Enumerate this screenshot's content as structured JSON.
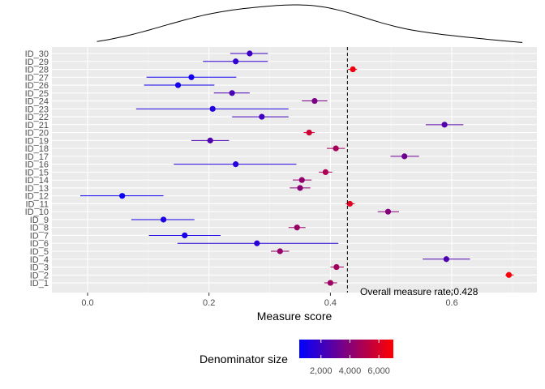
{
  "chart_data": {
    "type": "forest",
    "xlabel": "Measure score",
    "x_ticks": [
      0.0,
      0.2,
      0.4,
      0.6
    ],
    "x_tick_labels": [
      "0.0",
      "0.2",
      "0.4",
      "0.6"
    ],
    "xlim": [
      -0.07,
      0.74
    ],
    "reference_line": {
      "value": 0.428,
      "style": "dashed",
      "label": "Overall measure rate:0.428"
    },
    "density_curve": "top-margin",
    "legend": {
      "title": "Denominator size",
      "low_color": "#0000ff",
      "high_color": "#ff0000",
      "tick_labels": [
        "2,000",
        "4,000",
        "6,000"
      ],
      "tick_values": [
        2000,
        4000,
        6000
      ],
      "range": [
        500,
        7000
      ],
      "placement": "bottom"
    },
    "points": [
      {
        "id": "ID_1",
        "est": 0.4,
        "lo": 0.39,
        "hi": 0.411,
        "n": 4500
      },
      {
        "id": "ID_2",
        "est": 0.694,
        "lo": 0.688,
        "hi": 0.702,
        "n": 6800
      },
      {
        "id": "ID_3",
        "est": 0.41,
        "lo": 0.4,
        "hi": 0.422,
        "n": 4600
      },
      {
        "id": "ID_4",
        "est": 0.591,
        "lo": 0.552,
        "hi": 0.63,
        "n": 2500
      },
      {
        "id": "ID_5",
        "est": 0.317,
        "lo": 0.302,
        "hi": 0.332,
        "n": 4300
      },
      {
        "id": "ID_6",
        "est": 0.279,
        "lo": 0.148,
        "hi": 0.413,
        "n": 1500
      },
      {
        "id": "ID_7",
        "est": 0.16,
        "lo": 0.101,
        "hi": 0.219,
        "n": 1100
      },
      {
        "id": "ID_8",
        "est": 0.345,
        "lo": 0.331,
        "hi": 0.359,
        "n": 4400
      },
      {
        "id": "ID_9",
        "est": 0.125,
        "lo": 0.072,
        "hi": 0.176,
        "n": 1200
      },
      {
        "id": "ID_10",
        "est": 0.495,
        "lo": 0.478,
        "hi": 0.513,
        "n": 3900
      },
      {
        "id": "ID_11",
        "est": 0.432,
        "lo": 0.425,
        "hi": 0.44,
        "n": 6200
      },
      {
        "id": "ID_12",
        "est": 0.057,
        "lo": -0.012,
        "hi": 0.125,
        "n": 800
      },
      {
        "id": "ID_13",
        "est": 0.35,
        "lo": 0.333,
        "hi": 0.367,
        "n": 4000
      },
      {
        "id": "ID_14",
        "est": 0.353,
        "lo": 0.338,
        "hi": 0.369,
        "n": 4200
      },
      {
        "id": "ID_15",
        "est": 0.392,
        "lo": 0.381,
        "hi": 0.403,
        "n": 4900
      },
      {
        "id": "ID_16",
        "est": 0.244,
        "lo": 0.142,
        "hi": 0.344,
        "n": 1400
      },
      {
        "id": "ID_17",
        "est": 0.522,
        "lo": 0.499,
        "hi": 0.546,
        "n": 3300
      },
      {
        "id": "ID_18",
        "est": 0.409,
        "lo": 0.394,
        "hi": 0.424,
        "n": 4700
      },
      {
        "id": "ID_19",
        "est": 0.202,
        "lo": 0.171,
        "hi": 0.233,
        "n": 2500
      },
      {
        "id": "ID_20",
        "est": 0.365,
        "lo": 0.356,
        "hi": 0.374,
        "n": 5700
      },
      {
        "id": "ID_21",
        "est": 0.588,
        "lo": 0.557,
        "hi": 0.619,
        "n": 2700
      },
      {
        "id": "ID_22",
        "est": 0.287,
        "lo": 0.238,
        "hi": 0.331,
        "n": 2200
      },
      {
        "id": "ID_23",
        "est": 0.206,
        "lo": 0.08,
        "hi": 0.331,
        "n": 1300
      },
      {
        "id": "ID_24",
        "est": 0.374,
        "lo": 0.353,
        "hi": 0.395,
        "n": 3600
      },
      {
        "id": "ID_25",
        "est": 0.238,
        "lo": 0.208,
        "hi": 0.267,
        "n": 2400
      },
      {
        "id": "ID_26",
        "est": 0.149,
        "lo": 0.093,
        "hi": 0.209,
        "n": 1000
      },
      {
        "id": "ID_27",
        "est": 0.171,
        "lo": 0.097,
        "hi": 0.245,
        "n": 900
      },
      {
        "id": "ID_28",
        "est": 0.437,
        "lo": 0.429,
        "hi": 0.444,
        "n": 6600
      },
      {
        "id": "ID_29",
        "est": 0.244,
        "lo": 0.19,
        "hi": 0.297,
        "n": 1700
      },
      {
        "id": "ID_30",
        "est": 0.267,
        "lo": 0.235,
        "hi": 0.297,
        "n": 2000
      }
    ]
  }
}
